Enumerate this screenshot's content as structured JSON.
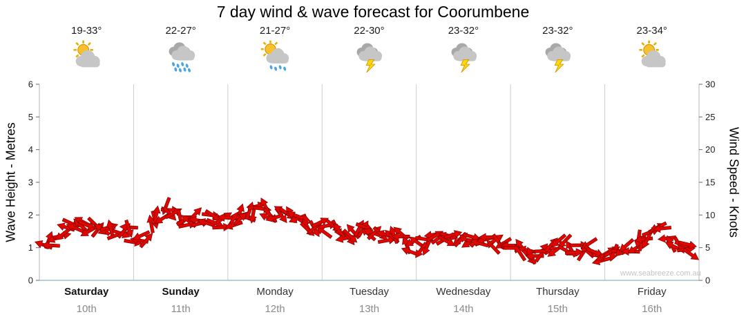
{
  "title": "7 day wind & wave forecast for Coorumbene",
  "watermark": "www.seabreeze.com.au",
  "axes": {
    "left_label": "Wave Height - Metres",
    "right_label": "Wind Speed - Knots",
    "left_ticks": [
      0,
      1,
      2,
      3,
      4,
      5,
      6
    ],
    "right_ticks": [
      0,
      5,
      10,
      15,
      20,
      25,
      30
    ]
  },
  "days": [
    {
      "name": "Saturday",
      "date": "10th",
      "temp": "19-33°",
      "icon": "sun-cloud",
      "bold": true
    },
    {
      "name": "Sunday",
      "date": "11th",
      "temp": "22-27°",
      "icon": "rain",
      "bold": true
    },
    {
      "name": "Monday",
      "date": "12th",
      "temp": "21-27°",
      "icon": "sun-rain",
      "bold": false
    },
    {
      "name": "Tuesday",
      "date": "13th",
      "temp": "22-30°",
      "icon": "storm",
      "bold": false
    },
    {
      "name": "Wednesday",
      "date": "14th",
      "temp": "23-32°",
      "icon": "storm",
      "bold": false
    },
    {
      "name": "Thursday",
      "date": "15th",
      "temp": "23-32°",
      "icon": "storm",
      "bold": false
    },
    {
      "name": "Friday",
      "date": "16th",
      "temp": "23-34°",
      "icon": "sun-cloud",
      "bold": false
    }
  ],
  "colors": {
    "arrow_fill": "#e10600",
    "arrow_edge": "#7e0000",
    "grid": "#cccccc",
    "axis": "#b4b4b4",
    "baseline": "#9fc0d4",
    "tick": "#666666",
    "tick_text": "#222222",
    "watermark": "#c4c4c4"
  },
  "chart_data": {
    "type": "line",
    "title": "7 day wind & wave forecast for Coorumbene",
    "x_categories": [
      "Saturday 10th",
      "Sunday 11th",
      "Monday 12th",
      "Tuesday 13th",
      "Wednesday 14th",
      "Thursday 15th",
      "Friday 16th"
    ],
    "points_per_day": 8,
    "series": [
      {
        "name": "Wind Speed",
        "unit": "knots",
        "values": [
          5.0,
          6.0,
          7.8,
          8.2,
          8.0,
          8.3,
          7.2,
          7.5,
          6.0,
          8.0,
          10.8,
          10.2,
          9.4,
          9.6,
          9.2,
          9.0,
          9.2,
          9.8,
          11.2,
          10.5,
          9.8,
          9.4,
          8.8,
          8.2,
          7.8,
          7.2,
          7.0,
          7.3,
          7.5,
          7.0,
          6.5,
          5.2,
          5.5,
          6.2,
          6.8,
          6.5,
          6.6,
          6.2,
          5.8,
          5.2,
          4.8,
          4.2,
          3.8,
          5.2,
          5.5,
          4.5,
          5.0,
          3.8,
          4.2,
          4.8,
          5.5,
          6.5,
          7.8,
          6.5,
          5.0,
          4.5
        ]
      }
    ],
    "left_axis": {
      "label": "Wave Height - Metres",
      "range": [
        0,
        6
      ]
    },
    "right_axis": {
      "label": "Wind Speed - Knots",
      "range": [
        0,
        30
      ]
    },
    "legend": "none",
    "grid": "vertical day separators only",
    "marker_style": "red wind direction arrows forming a band"
  }
}
